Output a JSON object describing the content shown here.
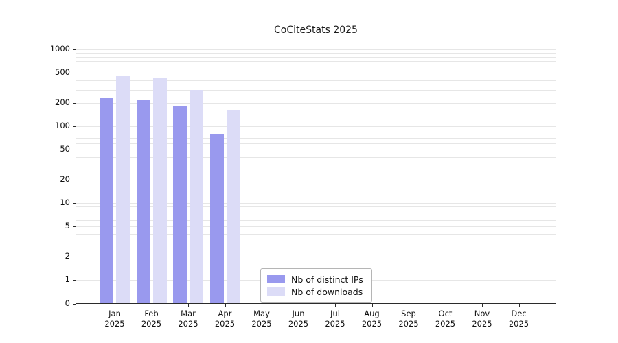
{
  "chart_data": {
    "type": "bar",
    "title": "CoCiteStats 2025",
    "yscale": "log",
    "ylim": [
      0,
      1000
    ],
    "yticks": [
      0,
      1,
      2,
      5,
      10,
      20,
      50,
      100,
      200,
      500,
      1000
    ],
    "categories": [
      "Jan",
      "Feb",
      "Mar",
      "Apr",
      "May",
      "Jun",
      "Jul",
      "Aug",
      "Sep",
      "Oct",
      "Nov",
      "Dec"
    ],
    "year_label": "2025",
    "grid": true,
    "legend_position": "lower-center-inside",
    "series": [
      {
        "name": "Nb of distinct IPs",
        "color": "#9999ee",
        "values": [
          230,
          220,
          180,
          80,
          null,
          null,
          null,
          null,
          null,
          null,
          null,
          null
        ]
      },
      {
        "name": "Nb of downloads",
        "color": "#dcdcf7",
        "values": [
          450,
          420,
          300,
          160,
          null,
          null,
          null,
          null,
          null,
          null,
          null,
          null
        ]
      }
    ]
  }
}
